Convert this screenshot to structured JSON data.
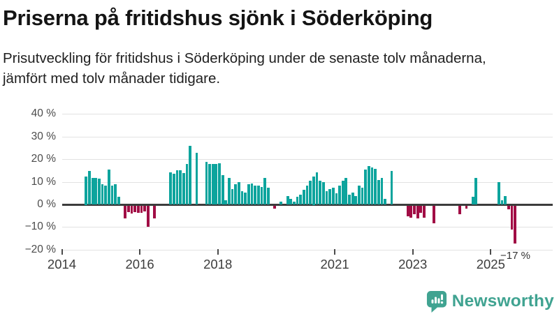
{
  "title": "Priserna på fritidshus sjönk i Söderköping",
  "subtitle": "Prisutveckling för fritidshus i Söderköping under de senaste tolv månaderna, jämfört med tolv månader tidigare.",
  "logo": {
    "text": "Newsworthy",
    "color": "#40A391"
  },
  "colors": {
    "positive_bar": "#0DA49D",
    "negative_bar": "#A10D45",
    "gridline": "#E2E2E2",
    "zero_line": "#3C3C3C",
    "axis_text": "#4B4B4B"
  },
  "chart_data": {
    "type": "bar",
    "title": "Priserna på fritidshus sjönk i Söderköping",
    "subtitle": "Prisutveckling för fritidshus i Söderköping under de senaste tolv månaderna, jämfört med tolv månader tidigare.",
    "unit": "%",
    "ylim": [
      -20,
      40
    ],
    "grid": true,
    "y_gridlines": [
      40,
      30,
      20,
      10,
      0,
      -10,
      -20
    ],
    "y_tick_labels": [
      "40 %",
      "30 %",
      "20 %",
      "10 %",
      "0 %",
      "−10 %",
      "−20 %"
    ],
    "x_ticks": [
      {
        "year": 2014,
        "label": "2014"
      },
      {
        "year": 2016,
        "label": "2016"
      },
      {
        "year": 2018,
        "label": "2018"
      },
      {
        "year": 2021,
        "label": "2021"
      },
      {
        "year": 2023,
        "label": "2023"
      },
      {
        "year": 2025,
        "label": "2025"
      }
    ],
    "annotation": {
      "text": "−17 %",
      "attached_to": "2025-08"
    },
    "series": [
      {
        "month": "2014-08",
        "value": 12.5
      },
      {
        "month": "2014-09",
        "value": 15
      },
      {
        "month": "2014-10",
        "value": 12
      },
      {
        "month": "2014-11",
        "value": 12
      },
      {
        "month": "2014-12",
        "value": 11.5
      },
      {
        "month": "2015-01",
        "value": 9
      },
      {
        "month": "2015-02",
        "value": 8.5
      },
      {
        "month": "2015-03",
        "value": 15.5
      },
      {
        "month": "2015-04",
        "value": 8.5
      },
      {
        "month": "2015-05",
        "value": 9
      },
      {
        "month": "2015-06",
        "value": 3.5
      },
      {
        "month": "2015-08",
        "value": -6
      },
      {
        "month": "2015-09",
        "value": -3.3
      },
      {
        "month": "2015-10",
        "value": -3.8
      },
      {
        "month": "2015-11",
        "value": -3.3
      },
      {
        "month": "2015-12",
        "value": -3.5
      },
      {
        "month": "2016-01",
        "value": -3.5
      },
      {
        "month": "2016-02",
        "value": -2.8
      },
      {
        "month": "2016-03",
        "value": -9.5
      },
      {
        "month": "2016-05",
        "value": -6
      },
      {
        "month": "2016-10",
        "value": 14.2
      },
      {
        "month": "2016-11",
        "value": 13.7
      },
      {
        "month": "2016-12",
        "value": 15.4
      },
      {
        "month": "2017-01",
        "value": 15.4
      },
      {
        "month": "2017-02",
        "value": 14
      },
      {
        "month": "2017-03",
        "value": 18
      },
      {
        "month": "2017-04",
        "value": 26
      },
      {
        "month": "2017-06",
        "value": 23
      },
      {
        "month": "2017-09",
        "value": 19
      },
      {
        "month": "2017-10",
        "value": 18
      },
      {
        "month": "2017-11",
        "value": 18
      },
      {
        "month": "2017-12",
        "value": 18
      },
      {
        "month": "2018-01",
        "value": 18.5
      },
      {
        "month": "2018-02",
        "value": 13
      },
      {
        "month": "2018-03",
        "value": 2
      },
      {
        "month": "2018-04",
        "value": 12
      },
      {
        "month": "2018-05",
        "value": 7
      },
      {
        "month": "2018-06",
        "value": 9
      },
      {
        "month": "2018-07",
        "value": 10
      },
      {
        "month": "2018-08",
        "value": 6
      },
      {
        "month": "2018-09",
        "value": 5.5
      },
      {
        "month": "2018-10",
        "value": 9
      },
      {
        "month": "2018-11",
        "value": 9.5
      },
      {
        "month": "2018-12",
        "value": 8.5
      },
      {
        "month": "2019-01",
        "value": 8.5
      },
      {
        "month": "2019-02",
        "value": 8
      },
      {
        "month": "2019-03",
        "value": 12
      },
      {
        "month": "2019-04",
        "value": 7.5
      },
      {
        "month": "2019-06",
        "value": -1.5
      },
      {
        "month": "2019-08",
        "value": 1.5
      },
      {
        "month": "2019-10",
        "value": 4
      },
      {
        "month": "2019-11",
        "value": 2.6
      },
      {
        "month": "2019-12",
        "value": 1.5
      },
      {
        "month": "2020-01",
        "value": 3.5
      },
      {
        "month": "2020-02",
        "value": 4.5
      },
      {
        "month": "2020-03",
        "value": 6.5
      },
      {
        "month": "2020-04",
        "value": 8.5
      },
      {
        "month": "2020-05",
        "value": 10.5
      },
      {
        "month": "2020-06",
        "value": 12.5
      },
      {
        "month": "2020-07",
        "value": 14.5
      },
      {
        "month": "2020-08",
        "value": 10.5
      },
      {
        "month": "2020-09",
        "value": 10
      },
      {
        "month": "2020-10",
        "value": 6
      },
      {
        "month": "2020-11",
        "value": 7
      },
      {
        "month": "2020-12",
        "value": 7.5
      },
      {
        "month": "2021-01",
        "value": 5
      },
      {
        "month": "2021-02",
        "value": 8.5
      },
      {
        "month": "2021-03",
        "value": 10.5
      },
      {
        "month": "2021-04",
        "value": 12
      },
      {
        "month": "2021-05",
        "value": 4.5
      },
      {
        "month": "2021-06",
        "value": 5.5
      },
      {
        "month": "2021-07",
        "value": 4
      },
      {
        "month": "2021-08",
        "value": 8.5
      },
      {
        "month": "2021-09",
        "value": 7.5
      },
      {
        "month": "2021-10",
        "value": 15.5
      },
      {
        "month": "2021-11",
        "value": 17
      },
      {
        "month": "2021-12",
        "value": 16.5
      },
      {
        "month": "2022-01",
        "value": 16
      },
      {
        "month": "2022-02",
        "value": 11
      },
      {
        "month": "2022-03",
        "value": 12
      },
      {
        "month": "2022-04",
        "value": 2.5
      },
      {
        "month": "2022-06",
        "value": 15
      },
      {
        "month": "2022-11",
        "value": -5
      },
      {
        "month": "2022-12",
        "value": -5.5
      },
      {
        "month": "2023-01",
        "value": -4
      },
      {
        "month": "2023-02",
        "value": -6
      },
      {
        "month": "2023-03",
        "value": -3.5
      },
      {
        "month": "2023-04",
        "value": -5.5
      },
      {
        "month": "2023-07",
        "value": -8
      },
      {
        "month": "2024-03",
        "value": -4
      },
      {
        "month": "2024-05",
        "value": -1.5
      },
      {
        "month": "2024-07",
        "value": 3.5
      },
      {
        "month": "2024-08",
        "value": 12
      },
      {
        "month": "2025-03",
        "value": 10
      },
      {
        "month": "2025-04",
        "value": 2
      },
      {
        "month": "2025-05",
        "value": 4
      },
      {
        "month": "2025-06",
        "value": -2
      },
      {
        "month": "2025-07",
        "value": -11
      },
      {
        "month": "2025-08",
        "value": -17
      }
    ]
  }
}
